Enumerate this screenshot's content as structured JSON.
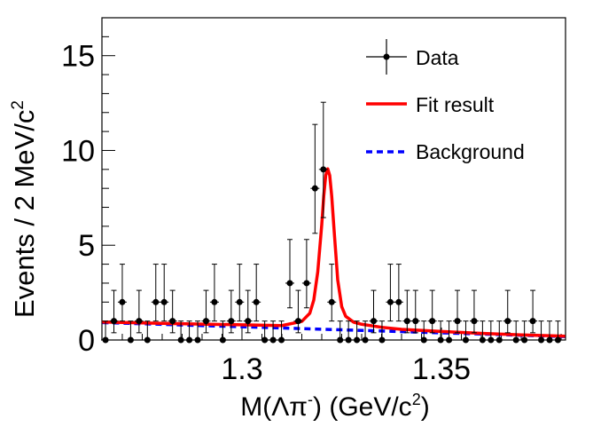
{
  "chart_data": {
    "type": "scatter",
    "title": "",
    "xlabel": "M(Λπ⁻) (GeV/c²)",
    "xlabel_parts": {
      "main": "M(Λπ",
      "sup1": "-",
      "mid": ") (GeV/c",
      "sup2": "2",
      "end": ")"
    },
    "ylabel": "Events / 2 MeV/c²",
    "ylabel_parts": {
      "main": "Events / 2 MeV/c",
      "sup": "2"
    },
    "xlim": [
      1.2649,
      1.3811
    ],
    "ylim": [
      0,
      17
    ],
    "xticks": [
      1.3,
      1.35
    ],
    "xtick_labels": [
      "1.3",
      "1.35"
    ],
    "yticks": [
      0,
      5,
      10,
      15
    ],
    "ytick_labels": [
      "0",
      "5",
      "10",
      "15"
    ],
    "grid": false,
    "legend_position": "top-right",
    "legend": [
      {
        "label": "Data",
        "style": "points-with-errors",
        "color": "#000000"
      },
      {
        "label": "Fit result",
        "style": "solid-line",
        "color": "#ff0000"
      },
      {
        "label": "Background",
        "style": "dashed-line",
        "color": "#0000ff"
      }
    ],
    "series": [
      {
        "name": "Data",
        "bin_start": 1.2658,
        "bin_width": 0.0021,
        "values": [
          0,
          1,
          2,
          0,
          1,
          0,
          2,
          2,
          1,
          0,
          0,
          0,
          1,
          2,
          0,
          1,
          2,
          1,
          2,
          0,
          0,
          0,
          3,
          1,
          3,
          8,
          9,
          2,
          0,
          0,
          0,
          0,
          1,
          0,
          2,
          2,
          1,
          1,
          0,
          1,
          0,
          0,
          1,
          0,
          1,
          0,
          0,
          0,
          1,
          0,
          0,
          1,
          0,
          0,
          0
        ]
      },
      {
        "name": "Fit result",
        "x": [
          1.265,
          1.28,
          1.3,
          1.31,
          1.315,
          1.317,
          1.318,
          1.319,
          1.32,
          1.3205,
          1.321,
          1.3215,
          1.322,
          1.3225,
          1.323,
          1.324,
          1.325,
          1.326,
          1.328,
          1.33,
          1.335,
          1.34,
          1.35,
          1.36,
          1.37,
          1.381
        ],
        "y": [
          0.95,
          0.88,
          0.8,
          0.76,
          0.98,
          1.41,
          2.11,
          3.6,
          6.09,
          7.59,
          8.69,
          9.03,
          8.68,
          7.58,
          6.07,
          3.17,
          1.76,
          1.25,
          0.94,
          0.83,
          0.67,
          0.56,
          0.45,
          0.35,
          0.27,
          0.2
        ]
      },
      {
        "name": "Background",
        "x": [
          1.265,
          1.381
        ],
        "y": [
          0.92,
          0.18
        ]
      }
    ]
  }
}
